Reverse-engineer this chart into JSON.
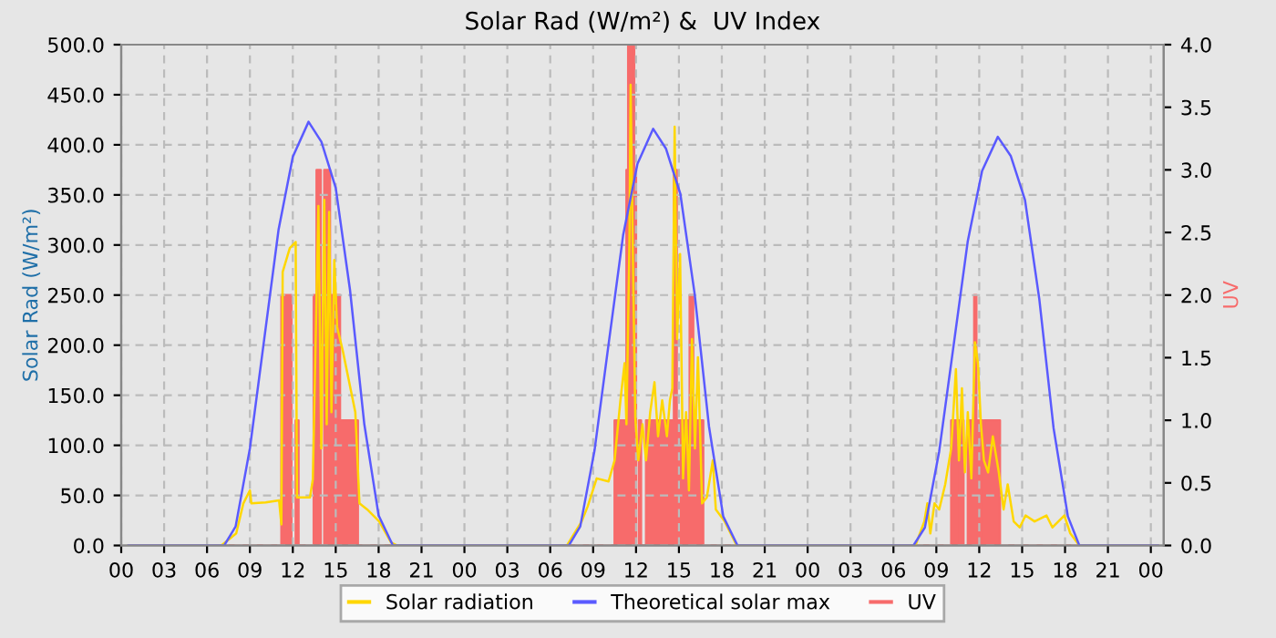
{
  "chart_data": {
    "type": "line",
    "title": "Solar Rad (W/m²) &  UV Index",
    "ylabel": "Solar Rad (W/m²)",
    "y2label": "UV",
    "xlim": [
      0,
      72.9
    ],
    "ylim": [
      0,
      500
    ],
    "y2lim": [
      0,
      4
    ],
    "xticks": [
      {
        "value": 0,
        "label": "00"
      },
      {
        "value": 3,
        "label": "03"
      },
      {
        "value": 6,
        "label": "06"
      },
      {
        "value": 9,
        "label": "09"
      },
      {
        "value": 12,
        "label": "12"
      },
      {
        "value": 15,
        "label": "15"
      },
      {
        "value": 18,
        "label": "18"
      },
      {
        "value": 21,
        "label": "21"
      },
      {
        "value": 24,
        "label": "00"
      },
      {
        "value": 27,
        "label": "03"
      },
      {
        "value": 30,
        "label": "06"
      },
      {
        "value": 33,
        "label": "09"
      },
      {
        "value": 36,
        "label": "12"
      },
      {
        "value": 39,
        "label": "15"
      },
      {
        "value": 42,
        "label": "18"
      },
      {
        "value": 45,
        "label": "21"
      },
      {
        "value": 48,
        "label": "00"
      },
      {
        "value": 51,
        "label": "03"
      },
      {
        "value": 54,
        "label": "06"
      },
      {
        "value": 57,
        "label": "09"
      },
      {
        "value": 60,
        "label": "12"
      },
      {
        "value": 63,
        "label": "15"
      },
      {
        "value": 66,
        "label": "18"
      },
      {
        "value": 69,
        "label": "21"
      },
      {
        "value": 72,
        "label": "00"
      }
    ],
    "yticks": [
      {
        "value": 0,
        "label": "0.0"
      },
      {
        "value": 50,
        "label": "50.0"
      },
      {
        "value": 100,
        "label": "100.0"
      },
      {
        "value": 150,
        "label": "150.0"
      },
      {
        "value": 200,
        "label": "200.0"
      },
      {
        "value": 250,
        "label": "250.0"
      },
      {
        "value": 300,
        "label": "300.0"
      },
      {
        "value": 350,
        "label": "350.0"
      },
      {
        "value": 400,
        "label": "400.0"
      },
      {
        "value": 450,
        "label": "450.0"
      },
      {
        "value": 500,
        "label": "500.0"
      }
    ],
    "y2ticks": [
      {
        "value": 0,
        "label": "0.0"
      },
      {
        "value": 0.5,
        "label": "0.5"
      },
      {
        "value": 1,
        "label": "1.0"
      },
      {
        "value": 1.5,
        "label": "1.5"
      },
      {
        "value": 2,
        "label": "2.0"
      },
      {
        "value": 2.5,
        "label": "2.5"
      },
      {
        "value": 3,
        "label": "3.0"
      },
      {
        "value": 3.5,
        "label": "3.5"
      },
      {
        "value": 4,
        "label": "4.0"
      }
    ],
    "grid": true,
    "legend": "bottom",
    "series": [
      {
        "name": "Solar radiation",
        "color": "#ffd700",
        "x": [
          0.5,
          7.0,
          8.04,
          8.54,
          9.0,
          9.1,
          10.1,
          11.04,
          11.2,
          11.29,
          11.79,
          12.2,
          12.29,
          13.2,
          13.4,
          13.79,
          13.99,
          14.2,
          14.37,
          14.54,
          14.7,
          14.9,
          15.1,
          15.5,
          16.37,
          16.66,
          17.2,
          18.04,
          18.87,
          19.3,
          31.17,
          32.2,
          32.62,
          33.25,
          34.08,
          34.5,
          34.91,
          35.2,
          35.33,
          35.54,
          35.62,
          35.79,
          35.95,
          36.16,
          36.45,
          36.7,
          36.99,
          37.29,
          37.54,
          37.83,
          38.16,
          38.37,
          38.54,
          38.7,
          38.87,
          39.08,
          39.29,
          39.5,
          39.7,
          39.91,
          40.12,
          40.33,
          40.62,
          40.95,
          41.37,
          41.58,
          42.2,
          43.04,
          55.54,
          56.16,
          56.37,
          56.58,
          56.87,
          57.2,
          57.62,
          58.04,
          58.37,
          58.58,
          58.79,
          59.0,
          59.2,
          59.45,
          59.7,
          59.91,
          60.12,
          60.33,
          60.62,
          60.95,
          61.37,
          61.7,
          61.99,
          62.41,
          62.83,
          63.24,
          63.87,
          64.7,
          65.12,
          65.95,
          66.37,
          67.0,
          72.5
        ],
        "values": [
          0,
          0,
          12,
          42,
          55,
          42,
          43,
          45,
          21,
          273,
          297,
          303,
          48,
          48,
          66,
          339,
          97,
          345,
          121,
          333,
          133,
          285,
          218,
          194,
          133,
          42,
          36,
          24,
          3,
          0,
          0,
          24,
          39,
          67,
          64,
          85,
          145,
          182,
          121,
          303,
          460,
          279,
          127,
          85,
          121,
          85,
          133,
          163,
          109,
          145,
          109,
          145,
          157,
          418,
          206,
          291,
          67,
          133,
          55,
          206,
          97,
          188,
          42,
          48,
          85,
          36,
          24,
          0,
          0,
          24,
          42,
          12,
          42,
          36,
          61,
          97,
          176,
          85,
          157,
          73,
          133,
          67,
          203,
          182,
          121,
          85,
          73,
          109,
          73,
          36,
          61,
          24,
          18,
          30,
          24,
          30,
          18,
          30,
          12,
          0,
          0
        ]
      },
      {
        "name": "Theoretical solar max",
        "color": "#5a5aff",
        "x": [
          0.5,
          7.2,
          8,
          9,
          10,
          11,
          12,
          13.1,
          14,
          15,
          16,
          17,
          18,
          19,
          31.3,
          32.1,
          33.1,
          34.1,
          35.1,
          36.1,
          37.2,
          38.1,
          39.1,
          40.1,
          41.1,
          42.1,
          43.1,
          55.4,
          56.2,
          57.2,
          58.2,
          59.2,
          60.2,
          61.3,
          62.2,
          63.2,
          64.2,
          65.2,
          66.2,
          67.0,
          72.5
        ],
        "values": [
          0,
          0,
          19,
          97,
          206,
          315,
          388,
          423,
          403,
          357,
          255,
          121,
          30,
          0,
          0,
          19,
          95,
          203,
          310,
          381,
          416,
          396,
          351,
          251,
          119,
          29,
          0,
          0,
          18,
          94,
          199,
          304,
          374,
          408,
          389,
          345,
          246,
          117,
          29,
          0,
          0
        ]
      },
      {
        "name": "UV",
        "type": "area",
        "axis": "y2",
        "color": "#f76b6b",
        "x": [
          0.5,
          11.2,
          11.2,
          11.9,
          11.9,
          12.2,
          12.2,
          12.4,
          12.4,
          13.46,
          13.46,
          13.66,
          13.66,
          13.95,
          13.95,
          14.2,
          14.2,
          14.6,
          14.6,
          15.3,
          15.3,
          16.55,
          16.55,
          34.5,
          34.5,
          35.33,
          35.33,
          35.45,
          35.45,
          35.87,
          35.87,
          36.0,
          36.0,
          36.2,
          36.2,
          36.35,
          36.35,
          36.7,
          36.7,
          38.65,
          38.65,
          38.85,
          38.85,
          39.75,
          39.75,
          40.0,
          40.0,
          40.7,
          40.7,
          58.04,
          58.04,
          58.6,
          58.6,
          58.75,
          58.75,
          58.9,
          58.9,
          59.2,
          59.2,
          59.65,
          59.65,
          59.8,
          59.8,
          60.25,
          60.25,
          60.35,
          60.35,
          61.45,
          61.45,
          72.5
        ],
        "values": [
          0,
          0,
          2,
          2,
          0,
          0,
          1,
          1,
          0,
          0,
          2,
          2,
          3,
          3,
          0,
          0,
          3,
          3,
          2,
          2,
          1,
          1,
          0,
          0,
          1,
          1,
          3,
          3,
          4,
          4,
          3,
          3,
          0,
          0,
          1,
          1,
          0,
          0,
          1,
          1,
          3,
          3,
          1,
          1,
          2,
          2,
          1,
          1,
          0,
          0,
          1,
          1,
          0,
          0,
          1,
          1,
          0,
          0,
          1,
          1,
          2,
          2,
          1,
          1,
          0,
          0,
          1,
          1,
          0,
          0
        ]
      }
    ]
  }
}
